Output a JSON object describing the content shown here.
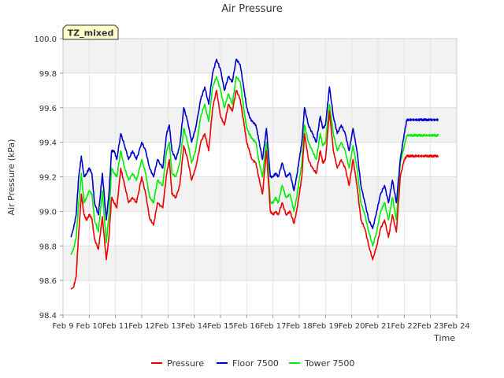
{
  "chart_data": {
    "type": "line",
    "title": "Air Pressure",
    "xlabel": "Time",
    "ylabel": "Air Pressure (kPa)",
    "badge": "TZ_mixed",
    "ylim": [
      98.4,
      100.0
    ],
    "xlim": [
      "2011-02-09",
      "2011-02-24"
    ],
    "y_ticks": [
      "98.4",
      "98.6",
      "98.8",
      "99.0",
      "99.2",
      "99.4",
      "99.6",
      "99.8",
      "100.0"
    ],
    "x_ticks": [
      "Feb 9",
      "Feb 10",
      "Feb 11",
      "Feb 12",
      "Feb 13",
      "Feb 14",
      "Feb 15",
      "Feb 16",
      "Feb 17",
      "Feb 18",
      "Feb 19",
      "Feb 20",
      "Feb 21",
      "Feb 22",
      "Feb 23",
      "Feb 24"
    ],
    "grid": true,
    "legend_position": "bottom",
    "series": [
      {
        "name": "Pressure",
        "color": "#ee0000",
        "x": [
          0.3,
          0.4,
          0.5,
          0.6,
          0.7,
          0.8,
          0.9,
          1.0,
          1.1,
          1.2,
          1.35,
          1.5,
          1.65,
          1.75,
          1.85,
          1.95,
          2.05,
          2.2,
          2.35,
          2.5,
          2.65,
          2.8,
          3.0,
          3.15,
          3.3,
          3.45,
          3.6,
          3.8,
          3.95,
          4.05,
          4.15,
          4.3,
          4.45,
          4.6,
          4.75,
          4.9,
          5.05,
          5.25,
          5.4,
          5.55,
          5.7,
          5.85,
          6.0,
          6.15,
          6.3,
          6.45,
          6.6,
          6.75,
          6.9,
          7.0,
          7.1,
          7.2,
          7.35,
          7.45,
          7.6,
          7.75,
          7.9,
          8.0,
          8.1,
          8.2,
          8.35,
          8.5,
          8.65,
          8.8,
          8.9,
          9.0,
          9.1,
          9.2,
          9.35,
          9.5,
          9.65,
          9.8,
          9.9,
          10.0,
          10.15,
          10.3,
          10.45,
          10.6,
          10.75,
          10.9,
          11.05,
          11.2,
          11.35,
          11.5,
          11.65,
          11.8,
          11.95,
          12.1,
          12.25,
          12.4,
          12.55,
          12.7,
          12.85,
          13.0,
          13.1,
          13.2,
          13.3,
          13.4,
          13.5,
          13.6,
          13.7,
          13.8,
          13.9,
          14.0,
          14.1,
          14.2,
          14.3
        ],
        "values": [
          98.55,
          98.56,
          98.62,
          98.88,
          99.1,
          98.98,
          98.95,
          98.98,
          98.96,
          98.84,
          98.78,
          98.97,
          98.72,
          98.85,
          99.08,
          99.05,
          99.02,
          99.25,
          99.15,
          99.05,
          99.08,
          99.05,
          99.2,
          99.1,
          98.96,
          98.92,
          99.05,
          99.02,
          99.22,
          99.3,
          99.1,
          99.08,
          99.15,
          99.38,
          99.3,
          99.18,
          99.25,
          99.4,
          99.45,
          99.35,
          99.6,
          99.7,
          99.55,
          99.5,
          99.62,
          99.58,
          99.7,
          99.65,
          99.5,
          99.4,
          99.35,
          99.3,
          99.28,
          99.2,
          99.1,
          99.35,
          99.0,
          98.98,
          99.0,
          98.98,
          99.05,
          98.98,
          99.0,
          98.93,
          99.0,
          99.1,
          99.2,
          99.45,
          99.3,
          99.25,
          99.22,
          99.35,
          99.28,
          99.3,
          99.58,
          99.35,
          99.25,
          99.3,
          99.25,
          99.15,
          99.3,
          99.15,
          98.95,
          98.9,
          98.8,
          98.72,
          98.8,
          98.9,
          98.95,
          98.85,
          98.98,
          98.88,
          99.2,
          99.3,
          99.32,
          99.32,
          99.32,
          99.32,
          99.32,
          99.32,
          99.32,
          99.32,
          99.32,
          99.32,
          99.32,
          99.32,
          99.32
        ]
      },
      {
        "name": "Floor 7500",
        "color": "#0000cc",
        "x": [
          0.3,
          0.4,
          0.5,
          0.6,
          0.7,
          0.8,
          0.9,
          1.0,
          1.1,
          1.2,
          1.35,
          1.5,
          1.65,
          1.75,
          1.85,
          1.95,
          2.05,
          2.2,
          2.35,
          2.5,
          2.65,
          2.8,
          3.0,
          3.15,
          3.3,
          3.45,
          3.6,
          3.8,
          3.95,
          4.05,
          4.15,
          4.3,
          4.45,
          4.6,
          4.75,
          4.9,
          5.05,
          5.25,
          5.4,
          5.55,
          5.7,
          5.85,
          6.0,
          6.15,
          6.3,
          6.45,
          6.6,
          6.75,
          6.9,
          7.0,
          7.1,
          7.2,
          7.35,
          7.45,
          7.6,
          7.75,
          7.9,
          8.0,
          8.1,
          8.2,
          8.35,
          8.5,
          8.65,
          8.8,
          8.9,
          9.0,
          9.1,
          9.2,
          9.35,
          9.5,
          9.65,
          9.8,
          9.9,
          10.0,
          10.15,
          10.3,
          10.45,
          10.6,
          10.75,
          10.9,
          11.05,
          11.2,
          11.35,
          11.5,
          11.65,
          11.8,
          11.95,
          12.1,
          12.25,
          12.4,
          12.55,
          12.7,
          12.85,
          13.0,
          13.1,
          13.2,
          13.3,
          13.4,
          13.5,
          13.6,
          13.7,
          13.8,
          13.9,
          14.0,
          14.1,
          14.2,
          14.3
        ],
        "values": [
          98.85,
          98.9,
          98.98,
          99.2,
          99.32,
          99.2,
          99.22,
          99.25,
          99.22,
          99.05,
          98.98,
          99.22,
          98.95,
          99.1,
          99.35,
          99.35,
          99.3,
          99.45,
          99.38,
          99.3,
          99.35,
          99.3,
          99.4,
          99.35,
          99.25,
          99.2,
          99.3,
          99.25,
          99.45,
          99.5,
          99.35,
          99.3,
          99.38,
          99.6,
          99.52,
          99.4,
          99.48,
          99.65,
          99.72,
          99.62,
          99.8,
          99.88,
          99.82,
          99.7,
          99.78,
          99.75,
          99.88,
          99.85,
          99.7,
          99.6,
          99.55,
          99.52,
          99.5,
          99.42,
          99.3,
          99.48,
          99.2,
          99.2,
          99.22,
          99.2,
          99.28,
          99.2,
          99.22,
          99.12,
          99.2,
          99.3,
          99.4,
          99.6,
          99.5,
          99.45,
          99.4,
          99.55,
          99.48,
          99.5,
          99.72,
          99.55,
          99.45,
          99.5,
          99.45,
          99.35,
          99.48,
          99.35,
          99.15,
          99.05,
          98.95,
          98.9,
          99.0,
          99.1,
          99.15,
          99.05,
          99.18,
          99.05,
          99.3,
          99.45,
          99.53,
          99.53,
          99.53,
          99.53,
          99.53,
          99.53,
          99.53,
          99.53,
          99.53,
          99.53,
          99.53,
          99.53,
          99.53
        ]
      },
      {
        "name": "Tower 7500",
        "color": "#00ee00",
        "x": [
          0.3,
          0.4,
          0.5,
          0.6,
          0.7,
          0.8,
          0.9,
          1.0,
          1.1,
          1.2,
          1.35,
          1.5,
          1.65,
          1.75,
          1.85,
          1.95,
          2.05,
          2.2,
          2.35,
          2.5,
          2.65,
          2.8,
          3.0,
          3.15,
          3.3,
          3.45,
          3.6,
          3.8,
          3.95,
          4.05,
          4.15,
          4.3,
          4.45,
          4.6,
          4.75,
          4.9,
          5.05,
          5.25,
          5.4,
          5.55,
          5.7,
          5.85,
          6.0,
          6.15,
          6.3,
          6.45,
          6.6,
          6.75,
          6.9,
          7.0,
          7.1,
          7.2,
          7.35,
          7.45,
          7.6,
          7.75,
          7.9,
          8.0,
          8.1,
          8.2,
          8.35,
          8.5,
          8.65,
          8.8,
          8.9,
          9.0,
          9.1,
          9.2,
          9.35,
          9.5,
          9.65,
          9.8,
          9.9,
          10.0,
          10.15,
          10.3,
          10.45,
          10.6,
          10.75,
          10.9,
          11.05,
          11.2,
          11.35,
          11.5,
          11.65,
          11.8,
          11.95,
          12.1,
          12.25,
          12.4,
          12.55,
          12.7,
          12.85,
          13.0,
          13.1,
          13.2,
          13.3,
          13.4,
          13.5,
          13.6,
          13.7,
          13.8,
          13.9,
          14.0,
          14.1,
          14.2,
          14.3
        ],
        "values": [
          98.75,
          98.78,
          98.85,
          99.05,
          99.22,
          99.05,
          99.08,
          99.12,
          99.1,
          98.95,
          98.88,
          99.12,
          98.82,
          98.98,
          99.25,
          99.22,
          99.2,
          99.35,
          99.25,
          99.18,
          99.22,
          99.18,
          99.3,
          99.22,
          99.08,
          99.05,
          99.18,
          99.15,
          99.35,
          99.4,
          99.22,
          99.2,
          99.28,
          99.48,
          99.4,
          99.28,
          99.35,
          99.55,
          99.62,
          99.52,
          99.72,
          99.78,
          99.7,
          99.6,
          99.68,
          99.62,
          99.78,
          99.75,
          99.58,
          99.48,
          99.45,
          99.42,
          99.4,
          99.3,
          99.2,
          99.4,
          99.05,
          99.05,
          99.08,
          99.05,
          99.15,
          99.08,
          99.1,
          99.0,
          99.08,
          99.18,
          99.28,
          99.5,
          99.4,
          99.35,
          99.3,
          99.45,
          99.38,
          99.4,
          99.62,
          99.45,
          99.35,
          99.4,
          99.35,
          99.25,
          99.38,
          99.25,
          99.05,
          98.98,
          98.88,
          98.8,
          98.88,
          99.0,
          99.05,
          98.95,
          99.08,
          98.95,
          99.28,
          99.38,
          99.44,
          99.44,
          99.44,
          99.44,
          99.44,
          99.44,
          99.44,
          99.44,
          99.44,
          99.44,
          99.44,
          99.44,
          99.44
        ]
      }
    ]
  }
}
